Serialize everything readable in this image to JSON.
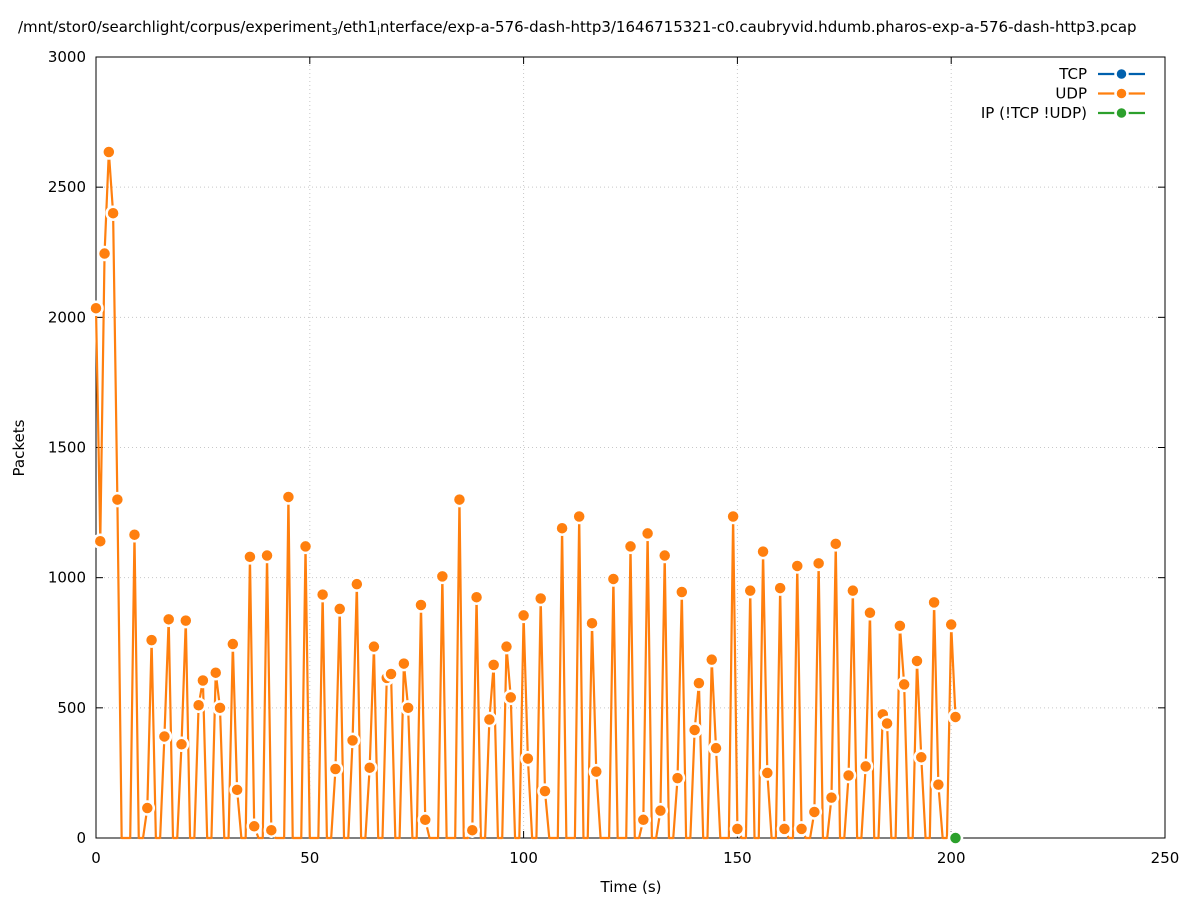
{
  "title_parts": {
    "p1": "/mnt/stor0/searchlight/corpus/experiment",
    "sub1": "3",
    "p2": "/eth1",
    "sub2": "i",
    "p3": "nterface/exp-a-576-dash-http3/1646715321-c0.caubryvid.hdumb.pharos-exp-a-576-dash-http3.pcap"
  },
  "chart_data": {
    "type": "line",
    "title": "/mnt/stor0/searchlight/corpus/experiment_3/eth1_interface/exp-a-576-dash-http3/1646715321-c0.caubryvid.hdumb.pharos-exp-a-576-dash-http3.pcap",
    "xlabel": "Time (s)",
    "ylabel": "Packets",
    "xlim": [
      0,
      250
    ],
    "ylim": [
      0,
      3000
    ],
    "xticks": [
      "0",
      "50",
      "100",
      "150",
      "200",
      "250"
    ],
    "yticks": [
      "0",
      "500",
      "1000",
      "1500",
      "2000",
      "2500",
      "3000"
    ],
    "grid": true,
    "legend_position": "top-right",
    "series": [
      {
        "name": "TCP",
        "color": "#0060ad",
        "points": []
      },
      {
        "name": "UDP",
        "color": "#ff7f0e",
        "points": [
          [
            0,
            2035
          ],
          [
            1,
            1140
          ],
          [
            2,
            2245
          ],
          [
            3,
            2635
          ],
          [
            4,
            2400
          ],
          [
            5,
            1300
          ],
          [
            6,
            0
          ],
          [
            7,
            0
          ],
          [
            8,
            0
          ],
          [
            9,
            1165
          ],
          [
            10,
            0
          ],
          [
            11,
            0
          ],
          [
            12,
            115
          ],
          [
            13,
            760
          ],
          [
            14,
            0
          ],
          [
            15,
            0
          ],
          [
            16,
            390
          ],
          [
            17,
            840
          ],
          [
            18,
            0
          ],
          [
            19,
            0
          ],
          [
            20,
            360
          ],
          [
            21,
            835
          ],
          [
            22,
            0
          ],
          [
            23,
            0
          ],
          [
            24,
            510
          ],
          [
            25,
            605
          ],
          [
            26,
            0
          ],
          [
            27,
            0
          ],
          [
            28,
            635
          ],
          [
            29,
            500
          ],
          [
            30,
            0
          ],
          [
            31,
            0
          ],
          [
            32,
            745
          ],
          [
            33,
            185
          ],
          [
            34,
            0
          ],
          [
            35,
            0
          ],
          [
            36,
            1080
          ],
          [
            37,
            45
          ],
          [
            38,
            0
          ],
          [
            39,
            0
          ],
          [
            40,
            1085
          ],
          [
            41,
            30
          ],
          [
            42,
            0
          ],
          [
            43,
            0
          ],
          [
            44,
            0
          ],
          [
            45,
            1310
          ],
          [
            46,
            0
          ],
          [
            47,
            0
          ],
          [
            48,
            0
          ],
          [
            49,
            1120
          ],
          [
            50,
            0
          ],
          [
            51,
            0
          ],
          [
            52,
            0
          ],
          [
            53,
            935
          ],
          [
            54,
            0
          ],
          [
            55,
            0
          ],
          [
            56,
            265
          ],
          [
            57,
            880
          ],
          [
            58,
            0
          ],
          [
            59,
            0
          ],
          [
            60,
            375
          ],
          [
            61,
            975
          ],
          [
            62,
            0
          ],
          [
            63,
            0
          ],
          [
            64,
            270
          ],
          [
            65,
            735
          ],
          [
            66,
            0
          ],
          [
            67,
            0
          ],
          [
            68,
            615
          ],
          [
            69,
            630
          ],
          [
            70,
            0
          ],
          [
            71,
            0
          ],
          [
            72,
            670
          ],
          [
            73,
            500
          ],
          [
            74,
            0
          ],
          [
            75,
            0
          ],
          [
            76,
            895
          ],
          [
            77,
            70
          ],
          [
            78,
            0
          ],
          [
            79,
            0
          ],
          [
            80,
            0
          ],
          [
            81,
            1005
          ],
          [
            82,
            0
          ],
          [
            83,
            0
          ],
          [
            84,
            0
          ],
          [
            85,
            1300
          ],
          [
            86,
            0
          ],
          [
            87,
            0
          ],
          [
            88,
            30
          ],
          [
            89,
            925
          ],
          [
            90,
            0
          ],
          [
            91,
            0
          ],
          [
            92,
            455
          ],
          [
            93,
            665
          ],
          [
            94,
            0
          ],
          [
            95,
            0
          ],
          [
            96,
            735
          ],
          [
            97,
            540
          ],
          [
            98,
            0
          ],
          [
            99,
            0
          ],
          [
            100,
            855
          ],
          [
            101,
            305
          ],
          [
            102,
            0
          ],
          [
            103,
            0
          ],
          [
            104,
            920
          ],
          [
            105,
            180
          ],
          [
            106,
            0
          ],
          [
            107,
            0
          ],
          [
            108,
            0
          ],
          [
            109,
            1190
          ],
          [
            110,
            0
          ],
          [
            111,
            0
          ],
          [
            112,
            0
          ],
          [
            113,
            1235
          ],
          [
            114,
            0
          ],
          [
            115,
            0
          ],
          [
            116,
            825
          ],
          [
            117,
            255
          ],
          [
            118,
            0
          ],
          [
            119,
            0
          ],
          [
            120,
            0
          ],
          [
            121,
            995
          ],
          [
            122,
            0
          ],
          [
            123,
            0
          ],
          [
            124,
            0
          ],
          [
            125,
            1120
          ],
          [
            126,
            0
          ],
          [
            127,
            0
          ],
          [
            128,
            70
          ],
          [
            129,
            1170
          ],
          [
            130,
            0
          ],
          [
            131,
            0
          ],
          [
            132,
            105
          ],
          [
            133,
            1085
          ],
          [
            134,
            0
          ],
          [
            135,
            0
          ],
          [
            136,
            230
          ],
          [
            137,
            945
          ],
          [
            138,
            0
          ],
          [
            139,
            0
          ],
          [
            140,
            415
          ],
          [
            141,
            595
          ],
          [
            142,
            0
          ],
          [
            143,
            0
          ],
          [
            144,
            685
          ],
          [
            145,
            345
          ],
          [
            146,
            0
          ],
          [
            147,
            0
          ],
          [
            148,
            0
          ],
          [
            149,
            1235
          ],
          [
            150,
            35
          ],
          [
            151,
            0
          ],
          [
            152,
            0
          ],
          [
            153,
            950
          ],
          [
            154,
            0
          ],
          [
            155,
            0
          ],
          [
            156,
            1100
          ],
          [
            157,
            250
          ],
          [
            158,
            0
          ],
          [
            159,
            0
          ],
          [
            160,
            960
          ],
          [
            161,
            35
          ],
          [
            162,
            0
          ],
          [
            163,
            0
          ],
          [
            164,
            1045
          ],
          [
            165,
            35
          ],
          [
            166,
            0
          ],
          [
            167,
            0
          ],
          [
            168,
            100
          ],
          [
            169,
            1055
          ],
          [
            170,
            0
          ],
          [
            171,
            0
          ],
          [
            172,
            155
          ],
          [
            173,
            1130
          ],
          [
            174,
            0
          ],
          [
            175,
            0
          ],
          [
            176,
            240
          ],
          [
            177,
            950
          ],
          [
            178,
            0
          ],
          [
            179,
            0
          ],
          [
            180,
            275
          ],
          [
            181,
            865
          ],
          [
            182,
            0
          ],
          [
            183,
            0
          ],
          [
            184,
            475
          ],
          [
            185,
            440
          ],
          [
            186,
            0
          ],
          [
            187,
            0
          ],
          [
            188,
            815
          ],
          [
            189,
            590
          ],
          [
            190,
            0
          ],
          [
            191,
            0
          ],
          [
            192,
            680
          ],
          [
            193,
            310
          ],
          [
            194,
            0
          ],
          [
            195,
            0
          ],
          [
            196,
            905
          ],
          [
            197,
            205
          ],
          [
            198,
            0
          ],
          [
            199,
            0
          ],
          [
            200,
            820
          ],
          [
            201,
            465
          ]
        ]
      },
      {
        "name": "IP (!TCP  !UDP)",
        "color": "#2ca02c",
        "points": [
          [
            201,
            0
          ]
        ]
      }
    ]
  }
}
